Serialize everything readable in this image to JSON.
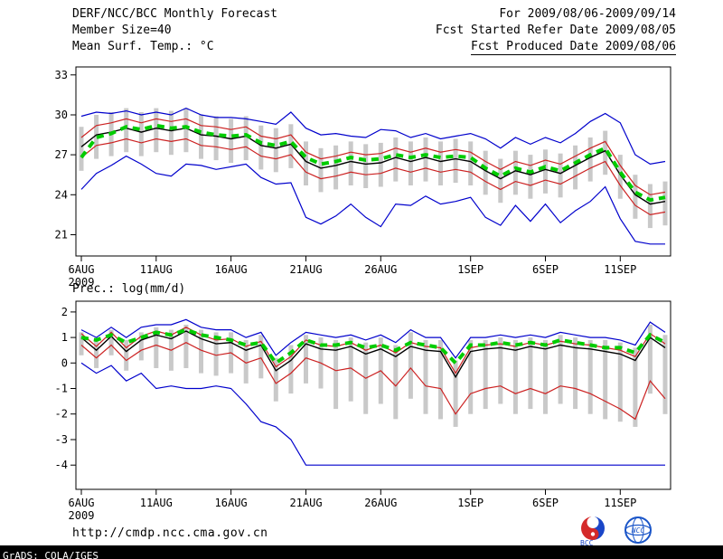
{
  "header": {
    "left": [
      "DERF/NCC/BCC Monthly Forecast",
      "Member Size=40",
      "Mean Surf. Temp.: °C"
    ],
    "right": [
      "For 2009/08/06-2009/09/14",
      "Fcst Started Refer Date 2009/08/05",
      "Fcst Produced Date 2009/08/06"
    ]
  },
  "footer": {
    "url": "http://cmdp.ncc.cma.gov.cn",
    "credit": "GrADS: COLA/IGES",
    "logos": [
      {
        "label": "BCC",
        "color_red": "#d42a2a",
        "color_blue": "#1a46c8"
      },
      {
        "label": "NCC",
        "color_blue": "#1a55c8"
      }
    ]
  },
  "chart_data": [
    {
      "type": "line",
      "name": "surface-temp-chart",
      "title": "Mean Surf. Temp.: °C",
      "ylabel": "°C",
      "ylim": [
        19.4,
        33.6
      ],
      "yticks": [
        33,
        30,
        27,
        24,
        21
      ],
      "xticks": [
        {
          "day": 0,
          "label": "6AUG"
        },
        {
          "day": 5,
          "label": "11AUG"
        },
        {
          "day": 10,
          "label": "16AUG"
        },
        {
          "day": 15,
          "label": "21AUG"
        },
        {
          "day": 20,
          "label": "26AUG"
        },
        {
          "day": 26,
          "label": "1SEP"
        },
        {
          "day": 31,
          "label": "6SEP"
        },
        {
          "day": 36,
          "label": "11SEP"
        }
      ],
      "year": "2009",
      "bars": {
        "name": "ensemble-spread",
        "color": "#c9c9c9",
        "high": [
          29.1,
          30.0,
          30.2,
          30.5,
          30.2,
          30.5,
          30.3,
          30.5,
          30.0,
          29.9,
          29.7,
          29.9,
          29.2,
          29.0,
          29.3,
          28.0,
          27.5,
          27.7,
          28.0,
          27.8,
          27.9,
          28.3,
          28.0,
          28.3,
          28.0,
          28.2,
          28.0,
          27.3,
          26.7,
          27.3,
          27.0,
          27.4,
          27.1,
          27.7,
          28.3,
          28.8,
          27.0,
          25.5,
          24.8,
          25.0
        ],
        "low": [
          25.8,
          26.7,
          26.9,
          27.2,
          26.9,
          27.2,
          27.0,
          27.2,
          26.7,
          26.6,
          26.4,
          26.6,
          25.9,
          25.7,
          26.0,
          24.7,
          24.2,
          24.4,
          24.7,
          24.5,
          24.6,
          25.0,
          24.7,
          25.0,
          24.7,
          24.9,
          24.7,
          24.0,
          23.4,
          24.0,
          23.7,
          24.1,
          23.8,
          24.4,
          25.0,
          25.5,
          23.7,
          22.2,
          21.5,
          21.7
        ]
      },
      "series": [
        {
          "name": "ensemble-max",
          "color": "#0000cc",
          "width": 1.2,
          "values": [
            29.9,
            30.2,
            30.1,
            30.3,
            30.0,
            30.2,
            30.0,
            30.5,
            30.0,
            29.8,
            29.8,
            29.7,
            29.5,
            29.3,
            30.2,
            29.0,
            28.5,
            28.6,
            28.4,
            28.3,
            28.9,
            28.8,
            28.3,
            28.6,
            28.2,
            28.4,
            28.6,
            28.2,
            27.5,
            28.3,
            27.8,
            28.3,
            27.9,
            28.6,
            29.5,
            30.1,
            29.4,
            27.0,
            26.3,
            26.5
          ]
        },
        {
          "name": "ensemble-min",
          "color": "#0000cc",
          "width": 1.2,
          "values": [
            24.4,
            25.6,
            26.2,
            26.9,
            26.3,
            25.6,
            25.4,
            26.3,
            26.2,
            25.9,
            26.1,
            26.3,
            25.3,
            24.8,
            24.9,
            22.3,
            21.8,
            22.4,
            23.3,
            22.3,
            21.6,
            23.3,
            23.2,
            23.9,
            23.3,
            23.5,
            23.8,
            22.3,
            21.7,
            23.2,
            22.0,
            23.3,
            21.9,
            22.8,
            23.5,
            24.6,
            22.2,
            20.5,
            20.3,
            20.3
          ]
        },
        {
          "name": "upper-quartile",
          "color": "#cc2222",
          "width": 1.2,
          "values": [
            28.3,
            29.2,
            29.4,
            29.7,
            29.4,
            29.7,
            29.5,
            29.7,
            29.2,
            29.1,
            28.9,
            29.1,
            28.4,
            28.2,
            28.5,
            27.2,
            26.7,
            26.9,
            27.2,
            27.0,
            27.1,
            27.5,
            27.2,
            27.5,
            27.2,
            27.4,
            27.2,
            26.5,
            25.9,
            26.5,
            26.2,
            26.6,
            26.3,
            26.9,
            27.5,
            28.0,
            26.2,
            24.7,
            24.0,
            24.2
          ]
        },
        {
          "name": "lower-quartile",
          "color": "#cc2222",
          "width": 1.2,
          "values": [
            26.8,
            27.7,
            27.9,
            28.2,
            27.9,
            28.2,
            28.0,
            28.2,
            27.7,
            27.6,
            27.4,
            27.6,
            26.9,
            26.7,
            27.0,
            25.7,
            25.2,
            25.4,
            25.7,
            25.5,
            25.6,
            26.0,
            25.7,
            26.0,
            25.7,
            25.9,
            25.7,
            25.0,
            24.4,
            25.0,
            24.7,
            25.1,
            24.8,
            25.4,
            26.0,
            26.5,
            24.7,
            23.2,
            22.5,
            22.7
          ]
        },
        {
          "name": "ensemble-mean",
          "color": "#000000",
          "width": 1.4,
          "values": [
            27.6,
            28.5,
            28.7,
            29.0,
            28.7,
            29.0,
            28.8,
            29.0,
            28.5,
            28.4,
            28.2,
            28.4,
            27.7,
            27.5,
            27.8,
            26.5,
            26.0,
            26.2,
            26.5,
            26.3,
            26.4,
            26.8,
            26.5,
            26.8,
            26.5,
            26.7,
            26.5,
            25.8,
            25.2,
            25.8,
            25.5,
            25.9,
            25.6,
            26.2,
            26.8,
            27.3,
            25.5,
            24.0,
            23.3,
            23.5
          ]
        },
        {
          "name": "ensemble-median",
          "color": "#00cc00",
          "width": 4,
          "dashed": true,
          "values": [
            26.8,
            28.3,
            28.6,
            29.1,
            28.9,
            29.2,
            29.0,
            29.1,
            28.7,
            28.5,
            28.4,
            28.5,
            27.9,
            27.7,
            28.0,
            26.8,
            26.3,
            26.5,
            26.8,
            26.6,
            26.7,
            27.0,
            26.8,
            27.0,
            26.8,
            26.9,
            26.8,
            26.0,
            25.4,
            26.0,
            25.7,
            26.1,
            25.8,
            26.4,
            27.0,
            27.5,
            25.7,
            24.2,
            23.6,
            23.8
          ]
        }
      ]
    },
    {
      "type": "line",
      "name": "precipitation-chart",
      "title": "Prec.: log(mm/d)",
      "ylabel": "log(mm/d)",
      "ylim": [
        -4.95,
        2.42
      ],
      "yticks": [
        2,
        1,
        0,
        -1,
        -2,
        -3,
        -4
      ],
      "xticks": [
        {
          "day": 0,
          "label": "6AUG"
        },
        {
          "day": 5,
          "label": "11AUG"
        },
        {
          "day": 10,
          "label": "16AUG"
        },
        {
          "day": 15,
          "label": "21AUG"
        },
        {
          "day": 20,
          "label": "26AUG"
        },
        {
          "day": 26,
          "label": "1SEP"
        },
        {
          "day": 31,
          "label": "6SEP"
        },
        {
          "day": 36,
          "label": "11SEP"
        }
      ],
      "year": "2009",
      "bars": {
        "name": "ensemble-spread",
        "color": "#c9c9c9",
        "high": [
          1.2,
          0.9,
          1.3,
          0.9,
          1.2,
          1.4,
          1.3,
          1.5,
          1.3,
          1.2,
          1.2,
          0.9,
          1.1,
          0.2,
          0.7,
          1.1,
          1.0,
          0.9,
          1.0,
          0.8,
          1.0,
          0.7,
          1.2,
          0.9,
          0.9,
          0.1,
          0.9,
          0.9,
          1.0,
          0.9,
          1.0,
          0.9,
          1.1,
          1.0,
          0.9,
          0.9,
          0.8,
          0.6,
          1.5,
          1.1
        ],
        "low": [
          0.3,
          -0.2,
          0.3,
          -0.3,
          0.1,
          -0.2,
          -0.3,
          -0.2,
          -0.4,
          -0.5,
          -0.4,
          -0.8,
          -0.6,
          -1.5,
          -1.2,
          -0.8,
          -1.0,
          -1.8,
          -1.5,
          -2.0,
          -1.6,
          -2.2,
          -1.4,
          -2.0,
          -2.2,
          -2.5,
          -2.0,
          -1.8,
          -1.6,
          -2.0,
          -1.8,
          -2.0,
          -1.6,
          -1.8,
          -2.0,
          -2.2,
          -2.3,
          -2.5,
          -1.2,
          -2.0
        ]
      },
      "series": [
        {
          "name": "ensemble-max",
          "color": "#0000cc",
          "width": 1.2,
          "values": [
            1.3,
            1.0,
            1.4,
            1.0,
            1.4,
            1.5,
            1.5,
            1.7,
            1.4,
            1.3,
            1.3,
            1.0,
            1.2,
            0.3,
            0.8,
            1.2,
            1.1,
            1.0,
            1.1,
            0.9,
            1.1,
            0.8,
            1.3,
            1.0,
            1.0,
            0.2,
            1.0,
            1.0,
            1.1,
            1.0,
            1.1,
            1.0,
            1.2,
            1.1,
            1.0,
            1.0,
            0.9,
            0.7,
            1.6,
            1.2
          ]
        },
        {
          "name": "ensemble-min",
          "color": "#0000cc",
          "width": 1.2,
          "values": [
            0.0,
            -0.4,
            -0.1,
            -0.7,
            -0.4,
            -1.0,
            -0.9,
            -1.0,
            -1.0,
            -0.9,
            -1.0,
            -1.6,
            -2.3,
            -2.5,
            -3.0,
            -4.0,
            -4.0,
            -4.0,
            -4.0,
            -4.0,
            -4.0,
            -4.0,
            -4.0,
            -4.0,
            -4.0,
            -4.0,
            -4.0,
            -4.0,
            -4.0,
            -4.0,
            -4.0,
            -4.0,
            -4.0,
            -4.0,
            -4.0,
            -4.0,
            -4.0,
            -4.0,
            -4.0,
            -4.0
          ]
        },
        {
          "name": "upper-quartile",
          "color": "#cc2222",
          "width": 1.2,
          "values": [
            1.15,
            0.65,
            1.2,
            0.6,
            1.05,
            1.25,
            1.1,
            1.4,
            1.1,
            0.9,
            0.95,
            0.65,
            0.85,
            -0.15,
            0.25,
            0.9,
            0.7,
            0.65,
            0.8,
            0.5,
            0.7,
            0.4,
            0.8,
            0.65,
            0.6,
            -0.4,
            0.6,
            0.7,
            0.75,
            0.65,
            0.8,
            0.7,
            0.85,
            0.75,
            0.7,
            0.6,
            0.5,
            0.25,
            1.15,
            0.75
          ]
        },
        {
          "name": "lower-quartile",
          "color": "#cc2222",
          "width": 1.2,
          "values": [
            0.7,
            0.2,
            0.7,
            0.1,
            0.5,
            0.7,
            0.5,
            0.8,
            0.5,
            0.3,
            0.4,
            0.0,
            0.2,
            -0.8,
            -0.4,
            0.2,
            0.0,
            -0.3,
            -0.2,
            -0.6,
            -0.3,
            -0.9,
            -0.2,
            -0.9,
            -1.0,
            -2.0,
            -1.2,
            -1.0,
            -0.9,
            -1.2,
            -1.0,
            -1.2,
            -0.9,
            -1.0,
            -1.2,
            -1.5,
            -1.8,
            -2.2,
            -0.7,
            -1.4
          ]
        },
        {
          "name": "ensemble-mean",
          "color": "#000000",
          "width": 1.4,
          "values": [
            1.0,
            0.5,
            1.05,
            0.45,
            0.9,
            1.1,
            0.95,
            1.25,
            0.95,
            0.75,
            0.8,
            0.5,
            0.7,
            -0.3,
            0.1,
            0.75,
            0.55,
            0.5,
            0.65,
            0.35,
            0.55,
            0.25,
            0.65,
            0.5,
            0.45,
            -0.55,
            0.45,
            0.55,
            0.6,
            0.5,
            0.65,
            0.55,
            0.7,
            0.6,
            0.55,
            0.45,
            0.35,
            0.1,
            1.0,
            0.6
          ]
        },
        {
          "name": "ensemble-median",
          "color": "#00cc00",
          "width": 4,
          "dashed": true,
          "values": [
            1.0,
            0.9,
            1.1,
            0.8,
            1.0,
            1.2,
            1.1,
            1.3,
            1.1,
            1.0,
            0.9,
            0.7,
            0.8,
            0.0,
            0.4,
            0.9,
            0.7,
            0.7,
            0.8,
            0.6,
            0.7,
            0.5,
            0.8,
            0.7,
            0.6,
            0.0,
            0.7,
            0.7,
            0.8,
            0.7,
            0.8,
            0.7,
            0.9,
            0.8,
            0.7,
            0.6,
            0.6,
            0.4,
            1.1,
            0.8
          ]
        }
      ]
    }
  ]
}
